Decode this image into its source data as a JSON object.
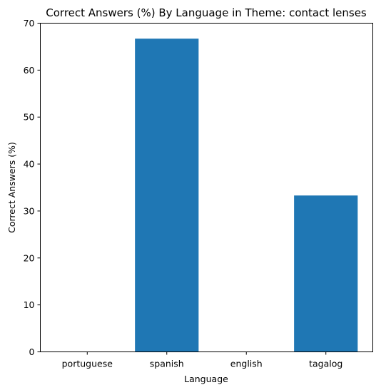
{
  "chart_data": {
    "type": "bar",
    "title": "Correct Answers (%) By Language in Theme: contact lenses",
    "xlabel": "Language",
    "ylabel": "Correct Answers (%)",
    "categories": [
      "portuguese",
      "spanish",
      "english",
      "tagalog"
    ],
    "values": [
      0,
      66.7,
      0,
      33.3
    ],
    "ylim": [
      0,
      70
    ],
    "yticks": [
      0,
      10,
      20,
      30,
      40,
      50,
      60,
      70
    ],
    "bar_color": "#1f77b4",
    "grid": false,
    "legend": "none"
  }
}
